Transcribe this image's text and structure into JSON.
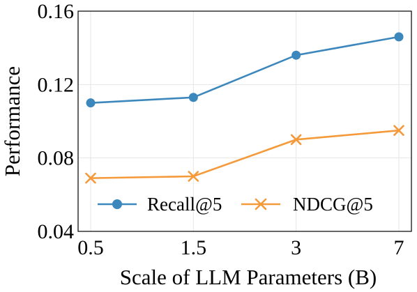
{
  "chart_data": {
    "type": "line",
    "title": "",
    "xlabel": "Scale of LLM Parameters (B)",
    "ylabel": "Performance",
    "categories": [
      "0.5",
      "1.5",
      "3",
      "7"
    ],
    "ylim": [
      0.04,
      0.16
    ],
    "yticks": [
      "0.04",
      "0.08",
      "0.12",
      "0.16"
    ],
    "yticks_values": [
      0.04,
      0.08,
      0.12,
      0.16
    ],
    "grid": true,
    "legend_position": "bottom-center",
    "series": [
      {
        "name": "Recall@5",
        "values": [
          0.11,
          0.113,
          0.136,
          0.146
        ],
        "color": "#3C87BC",
        "marker": "circle"
      },
      {
        "name": "NDCG@5",
        "values": [
          0.069,
          0.07,
          0.09,
          0.095
        ],
        "color": "#F59A3A",
        "marker": "x"
      }
    ]
  }
}
